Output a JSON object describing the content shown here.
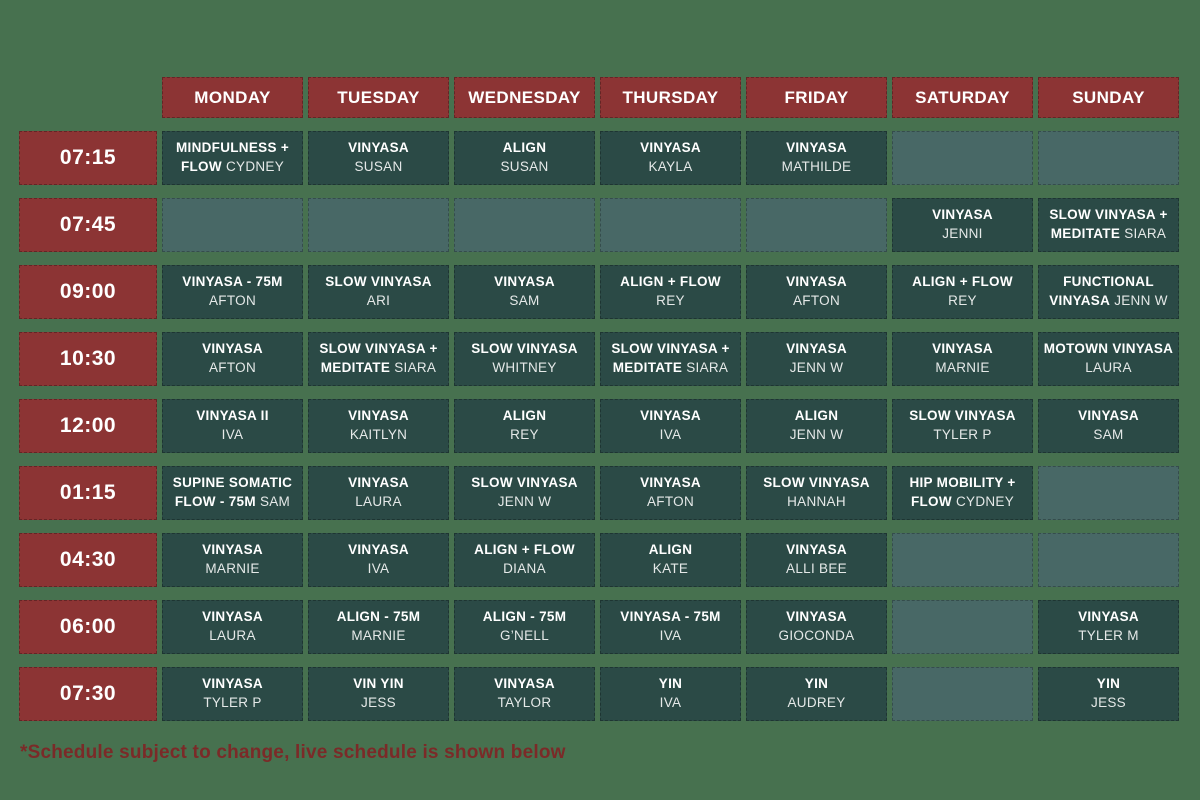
{
  "page": {
    "footnote": "*Schedule subject to change, live schedule is shown below"
  },
  "colors": {
    "page_bg": "#47714F",
    "header_bg": "#8C3434",
    "time_bg": "#8C3434",
    "class_bg": "#2B4A46",
    "empty_bg": "#486866",
    "cell_text": "#FFFFFF",
    "footnote_text": "#7B2A28"
  },
  "days": [
    "MONDAY",
    "TUESDAY",
    "WEDNESDAY",
    "THURSDAY",
    "FRIDAY",
    "SATURDAY",
    "SUNDAY"
  ],
  "rows": [
    {
      "time": "07:15",
      "cells": [
        {
          "l1": "MINDFULNESS +",
          "l2": "FLOW",
          "teacher": "CYDNEY"
        },
        {
          "l1": "VINYASA",
          "teacher": "SUSAN"
        },
        {
          "l1": "ALIGN",
          "teacher": "SUSAN"
        },
        {
          "l1": "VINYASA",
          "teacher": "KAYLA"
        },
        {
          "l1": "VINYASA",
          "teacher": "MATHILDE"
        },
        null,
        null
      ]
    },
    {
      "time": "07:45",
      "cells": [
        null,
        null,
        null,
        null,
        null,
        {
          "l1": "VINYASA",
          "teacher": "JENNI"
        },
        {
          "l1": "SLOW VINYASA +",
          "l2": "MEDITATE",
          "teacher": "SIARA"
        }
      ]
    },
    {
      "time": "09:00",
      "cells": [
        {
          "l1": "VINYASA - 75M",
          "teacher": "AFTON"
        },
        {
          "l1": "SLOW VINYASA",
          "teacher": "ARI"
        },
        {
          "l1": "VINYASA",
          "teacher": "SAM"
        },
        {
          "l1": "ALIGN + FLOW",
          "teacher": "REY"
        },
        {
          "l1": "VINYASA",
          "teacher": "AFTON"
        },
        {
          "l1": "ALIGN + FLOW",
          "teacher": "REY"
        },
        {
          "l1": "FUNCTIONAL",
          "l2": "VINYASA",
          "teacher": "JENN W"
        }
      ]
    },
    {
      "time": "10:30",
      "cells": [
        {
          "l1": "VINYASA",
          "teacher": "AFTON"
        },
        {
          "l1": "SLOW VINYASA +",
          "l2": "MEDITATE",
          "teacher": "SIARA"
        },
        {
          "l1": "SLOW VINYASA",
          "teacher": "WHITNEY"
        },
        {
          "l1": "SLOW VINYASA +",
          "l2": "MEDITATE",
          "teacher": "SIARA"
        },
        {
          "l1": "VINYASA",
          "teacher": "JENN W"
        },
        {
          "l1": "VINYASA",
          "teacher": "MARNIE"
        },
        {
          "l1": "MOTOWN VINYASA",
          "teacher": "LAURA"
        }
      ]
    },
    {
      "time": "12:00",
      "cells": [
        {
          "l1": "VINYASA II",
          "teacher": "IVA"
        },
        {
          "l1": "VINYASA",
          "teacher": "KAITLYN"
        },
        {
          "l1": "ALIGN",
          "teacher": "REY"
        },
        {
          "l1": "VINYASA",
          "teacher": "IVA"
        },
        {
          "l1": "ALIGN",
          "teacher": "JENN W"
        },
        {
          "l1": "SLOW VINYASA",
          "teacher": "TYLER P"
        },
        {
          "l1": "VINYASA",
          "teacher": "SAM"
        }
      ]
    },
    {
      "time": "01:15",
      "cells": [
        {
          "l1": "SUPINE SOMATIC",
          "l2": "FLOW - 75M",
          "teacher": "SAM"
        },
        {
          "l1": "VINYASA",
          "teacher": "LAURA"
        },
        {
          "l1": "SLOW VINYASA",
          "teacher": "JENN W"
        },
        {
          "l1": "VINYASA",
          "teacher": "AFTON"
        },
        {
          "l1": "SLOW VINYASA",
          "teacher": "HANNAH"
        },
        {
          "l1": "HIP MOBILITY +",
          "l2": "FLOW",
          "teacher": "CYDNEY"
        },
        null
      ]
    },
    {
      "time": "04:30",
      "cells": [
        {
          "l1": "VINYASA",
          "teacher": "MARNIE"
        },
        {
          "l1": "VINYASA",
          "teacher": "IVA"
        },
        {
          "l1": "ALIGN + FLOW",
          "teacher": "DIANA"
        },
        {
          "l1": "ALIGN",
          "teacher": "KATE"
        },
        {
          "l1": "VINYASA",
          "teacher": "ALLI BEE"
        },
        null,
        null
      ]
    },
    {
      "time": "06:00",
      "cells": [
        {
          "l1": "VINYASA",
          "teacher": "LAURA"
        },
        {
          "l1": "ALIGN - 75M",
          "teacher": "MARNIE"
        },
        {
          "l1": "ALIGN - 75M",
          "teacher": "G’NELL"
        },
        {
          "l1": "VINYASA - 75M",
          "teacher": "IVA"
        },
        {
          "l1": "VINYASA",
          "teacher": "GIOCONDA"
        },
        null,
        {
          "l1": "VINYASA",
          "teacher": "TYLER M"
        }
      ]
    },
    {
      "time": "07:30",
      "cells": [
        {
          "l1": "VINYASA",
          "teacher": "TYLER P"
        },
        {
          "l1": "VIN YIN",
          "teacher": "JESS"
        },
        {
          "l1": "VINYASA",
          "teacher": "TAYLOR"
        },
        {
          "l1": "YIN",
          "teacher": "IVA"
        },
        {
          "l1": "YIN",
          "teacher": "AUDREY"
        },
        null,
        {
          "l1": "YIN",
          "teacher": "JESS"
        }
      ]
    }
  ]
}
